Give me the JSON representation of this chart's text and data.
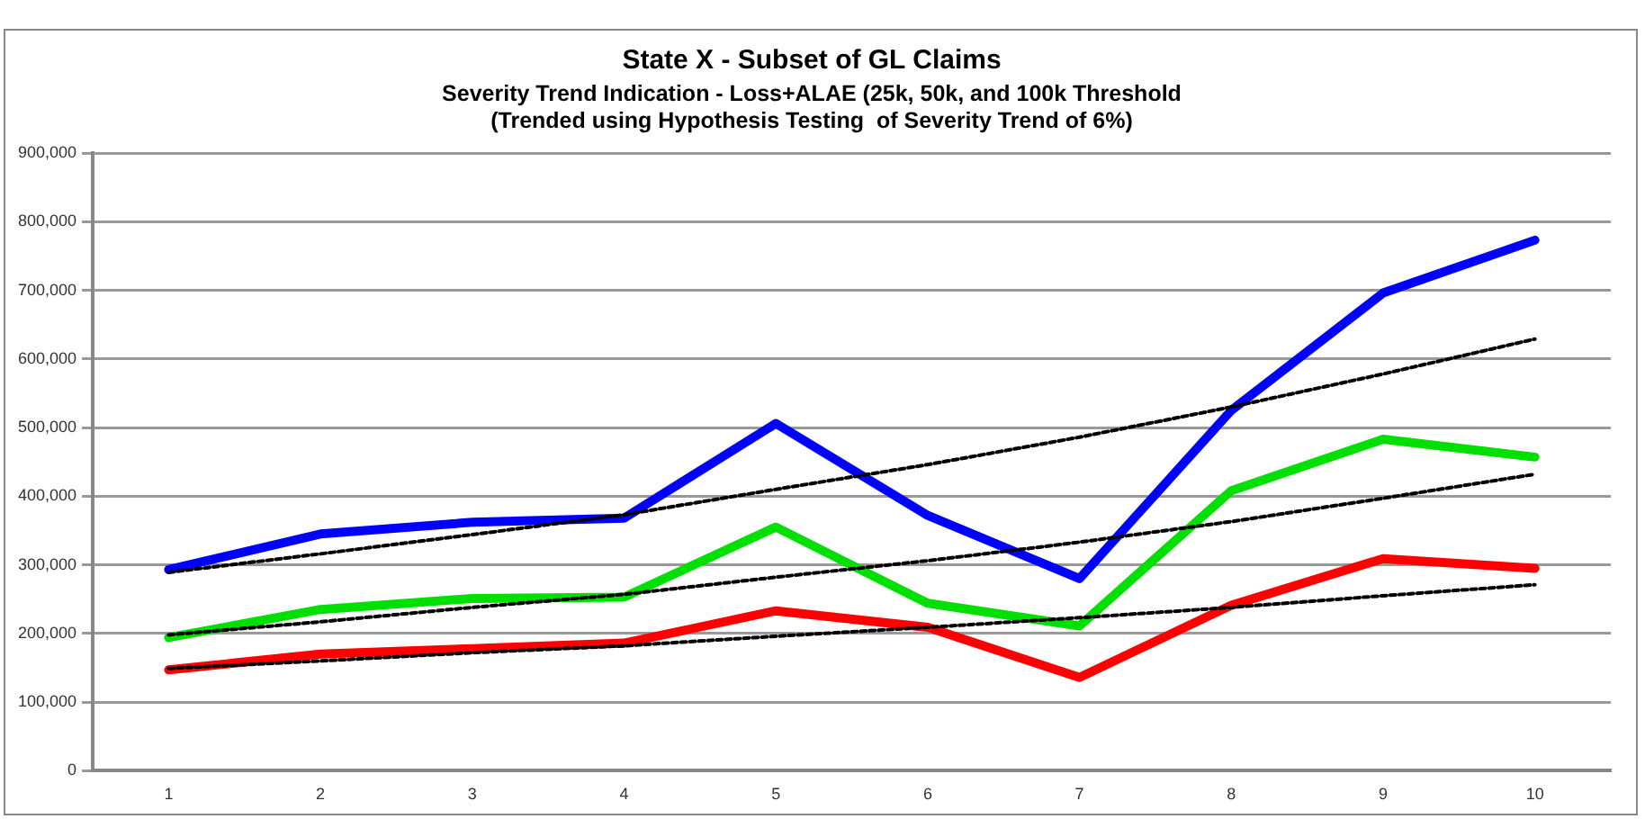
{
  "chart_data": {
    "type": "line",
    "title": "State X - Subset of GL Claims",
    "subtitle": [
      "Severity Trend Indication - Loss+ALAE (25k, 50k, and 100k Threshold",
      "(Trended using Hypothesis Testing  of Severity Trend of 6%)"
    ],
    "categories": [
      "1",
      "2",
      "3",
      "4",
      "5",
      "6",
      "7",
      "8",
      "9",
      "10"
    ],
    "ylim": [
      0,
      900000
    ],
    "yticks": [
      0,
      {
        "value": 100000,
        "label": "100,000"
      },
      {
        "value": 200000,
        "label": "200,000"
      },
      {
        "value": 300000,
        "label": "300,000"
      },
      {
        "value": 400000,
        "label": "400,000"
      },
      {
        "value": 500000,
        "label": "500,000"
      },
      {
        "value": 600000,
        "label": "600,000"
      },
      {
        "value": 700000,
        "label": "700,000"
      },
      {
        "value": 800000,
        "label": "800,000"
      },
      {
        "value": 900000,
        "label": "900,000"
      }
    ],
    "grid": "y",
    "legend": false,
    "marker": "none",
    "series": [
      {
        "color": "#0000ff",
        "values": [
          293000,
          345000,
          362000,
          368000,
          506000,
          372000,
          280000,
          525000,
          696000,
          773000
        ]
      },
      {
        "color": "#00e000",
        "values": [
          194000,
          235000,
          251000,
          253000,
          355000,
          244000,
          211000,
          408000,
          483000,
          457000
        ]
      },
      {
        "color": "#ff0000",
        "values": [
          147000,
          170000,
          178000,
          186000,
          233000,
          209000,
          136000,
          241000,
          309000,
          295000
        ]
      },
      {
        "color": "#000000",
        "line_style": "dashed",
        "values": [
          289000,
          316000,
          344000,
          373000,
          410000,
          446000,
          486000,
          530000,
          578000,
          629000
        ]
      },
      {
        "color": "#000000",
        "line_style": "dashed",
        "values": [
          198000,
          217000,
          238000,
          257000,
          282000,
          306000,
          333000,
          363000,
          397000,
          432000
        ]
      },
      {
        "color": "#000000",
        "line_style": "dashed",
        "values": [
          149000,
          160000,
          172000,
          182000,
          196000,
          209000,
          223000,
          238000,
          255000,
          271000
        ]
      }
    ]
  }
}
